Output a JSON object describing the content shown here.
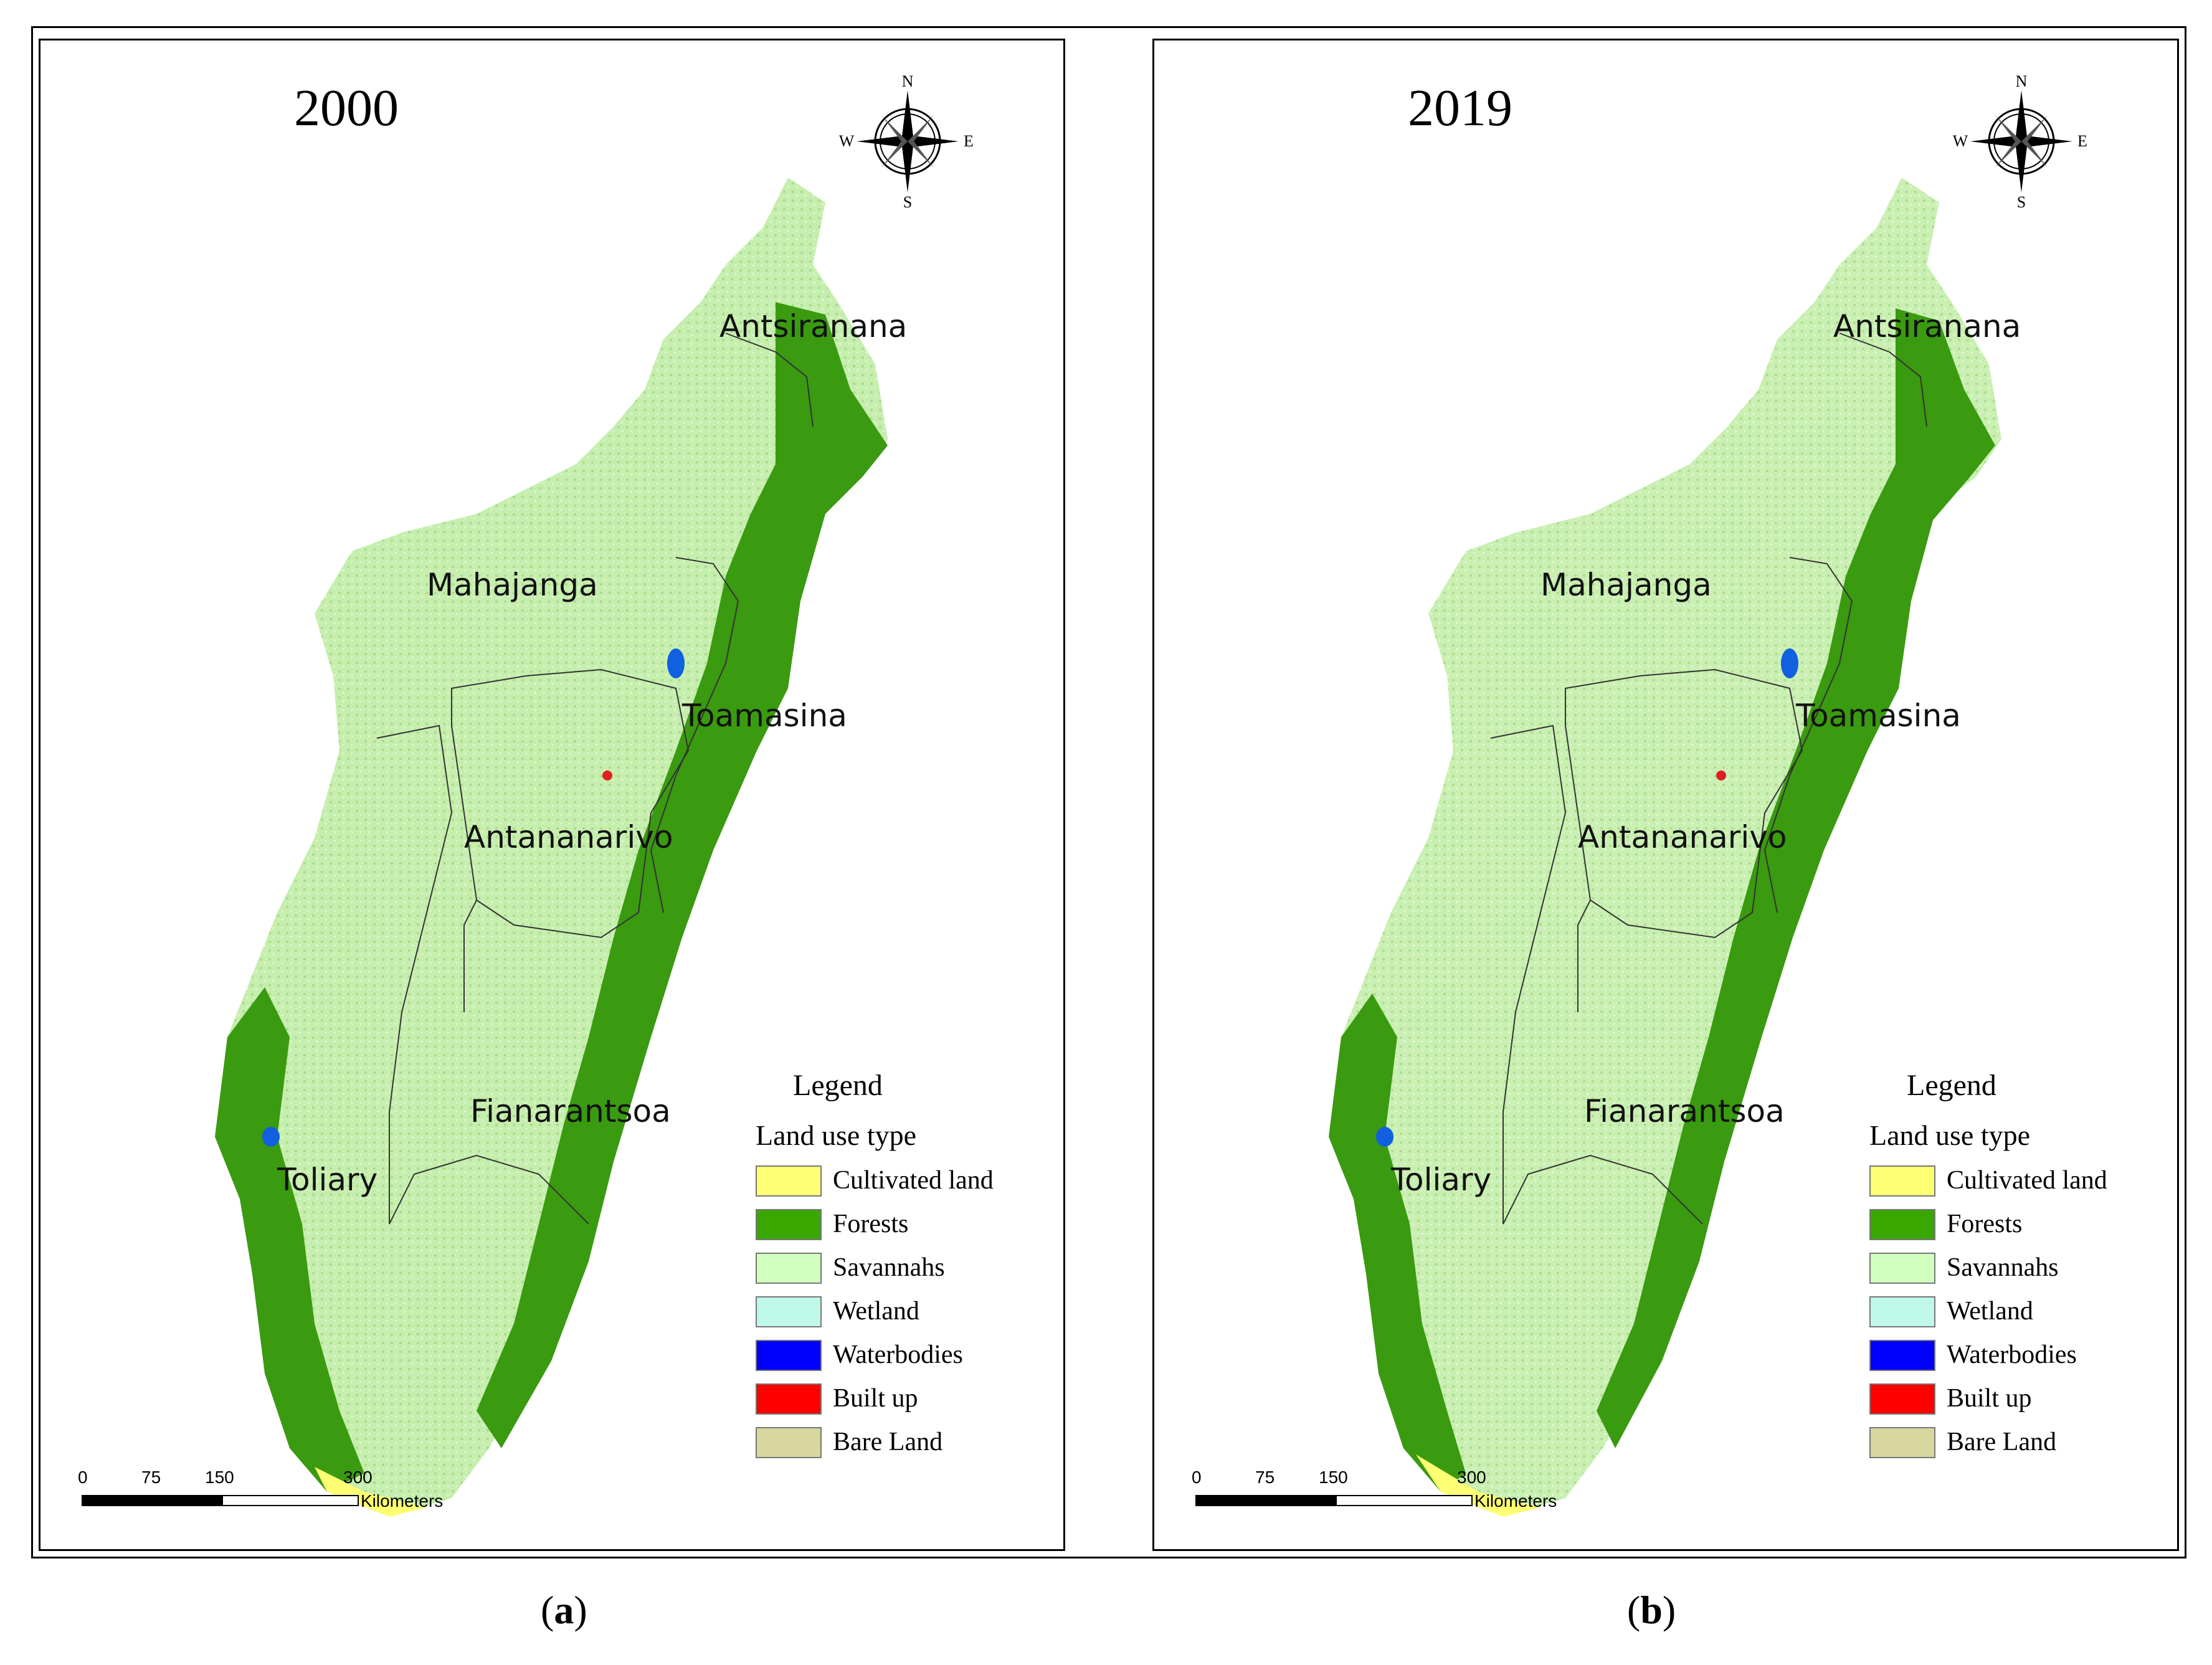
{
  "panels": [
    {
      "year": "2000",
      "regions": {
        "antsiranana": "Antsiranana",
        "mahajanga": "Mahajanga",
        "toamasina": "Toamasina",
        "antananarivo": "Antananarivo",
        "fianarantsoa": "Fianarantsoa",
        "toliary": "Toliary"
      },
      "caption": "(a)",
      "caption_letter": "a"
    },
    {
      "year": "2019",
      "regions": {
        "antsiranana": "Antsiranana",
        "mahajanga": "Mahajanga",
        "toamasina": "Toamasina",
        "antananarivo": "Antananarivo",
        "fianarantsoa": "Fianarantsoa",
        "toliary": "Toliary"
      },
      "caption": "(b)",
      "caption_letter": "b"
    }
  ],
  "compass": {
    "n": "N",
    "s": "S",
    "e": "E",
    "w": "W"
  },
  "legend": {
    "title": "Legend",
    "subtitle": "Land use type",
    "items": [
      {
        "label": "Cultivated land",
        "color": "#ffff73"
      },
      {
        "label": "Forests",
        "color": "#38a800"
      },
      {
        "label": "Savannahs",
        "color": "#d1ffbe"
      },
      {
        "label": "Wetland",
        "color": "#bef8e8"
      },
      {
        "label": "Waterbodies",
        "color": "#0000ff"
      },
      {
        "label": "Built up",
        "color": "#ff0000"
      },
      {
        "label": "Bare Land",
        "color": "#d7d79e"
      }
    ]
  },
  "scalebar": {
    "ticks": [
      "0",
      "75",
      "150",
      "300"
    ],
    "unit": "Kilometers"
  },
  "colors": {
    "forest": "#3a9a10",
    "savannah": "#c8f0b0",
    "cultivated": "#ffff73",
    "water": "#1060e0",
    "built": "#e02020"
  }
}
